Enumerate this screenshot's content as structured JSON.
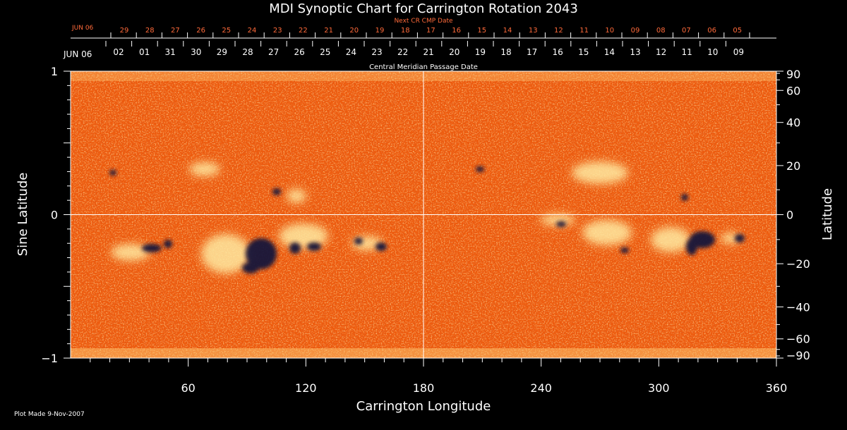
{
  "chart_data": {
    "type": "heatmap",
    "title": "MDI Synoptic Chart for Carrington Rotation 2043",
    "xlabel": "Carrington Longitude",
    "ylabel_left": "Sine Latitude",
    "ylabel_right": "Latitude",
    "xlim": [
      0,
      360
    ],
    "ylim": [
      -1,
      1
    ],
    "x_ticks": [
      60,
      120,
      180,
      240,
      300,
      360
    ],
    "x_tick_labels": [
      "60",
      "120",
      "180",
      "240",
      "300",
      "360"
    ],
    "y_ticks_left": [
      -1,
      0,
      1
    ],
    "y_tick_labels_left": [
      "−1",
      "0",
      "1"
    ],
    "latitude_ticks": [
      90,
      60,
      40,
      20,
      0,
      -20,
      -40,
      -60,
      -90
    ],
    "latitude_tick_labels": [
      "90",
      "60",
      "40",
      "20",
      "0",
      "−20",
      "−40",
      "−60",
      "−90"
    ],
    "cmp_axis_label": "Central Meridian Passage Date",
    "cmp_start_label": "JUN 06",
    "cmp_dates": [
      "02",
      "01",
      "31",
      "30",
      "29",
      "28",
      "27",
      "26",
      "25",
      "24",
      "23",
      "22",
      "21",
      "20",
      "19",
      "18",
      "17",
      "16",
      "15",
      "14",
      "13",
      "12",
      "11",
      "10",
      "09"
    ],
    "next_cr_label": "Next CR CMP Date",
    "next_cr_start_label": "JUN 06",
    "next_cr_dates": [
      "29",
      "28",
      "27",
      "26",
      "25",
      "24",
      "23",
      "22",
      "21",
      "20",
      "19",
      "18",
      "17",
      "16",
      "15",
      "14",
      "13",
      "12",
      "11",
      "10",
      "09",
      "08",
      "07",
      "06",
      "05"
    ],
    "grid_lines": {
      "longitude": 180,
      "latitude": 0
    },
    "colors": {
      "background": "#ee5a0c",
      "positive": "#fff6b0",
      "negative": "#14143a",
      "grid": "#ffffff"
    }
  },
  "footer": {
    "plot_made": "Plot Made  9-Nov-2007"
  }
}
